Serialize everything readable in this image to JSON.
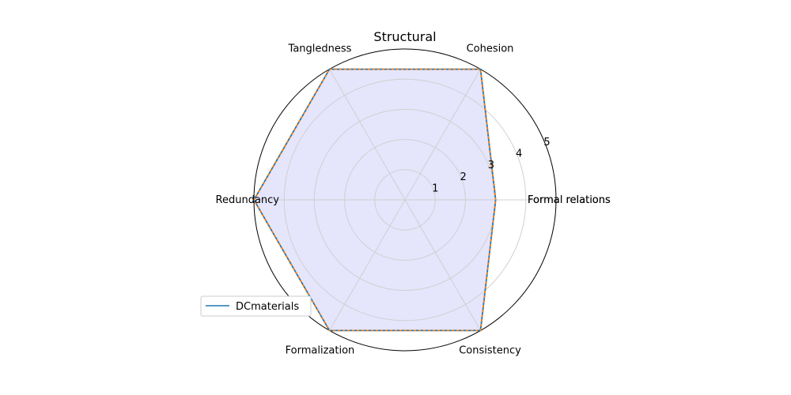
{
  "chart_data": {
    "type": "radar",
    "title": "Structural",
    "axes": [
      "Formal relations",
      "Cohesion",
      "Tangledness",
      "Redundancy",
      "Formalization",
      "Consistency",
      "Formal relations"
    ],
    "rlim": [
      0,
      5
    ],
    "rticks": [
      "1",
      "2",
      "3",
      "4",
      "5"
    ],
    "series": [
      {
        "name": "DCmaterials",
        "values": [
          3,
          5,
          5,
          5,
          5,
          5,
          3
        ],
        "color": "#1f77b4"
      },
      {
        "values": [
          3,
          5,
          5,
          5,
          5,
          5,
          3
        ],
        "color": "#ff7f0e",
        "line_style": "dashed"
      }
    ],
    "fill_color": "#e5e5fc",
    "grid": true,
    "legend_position": "lower-left"
  }
}
